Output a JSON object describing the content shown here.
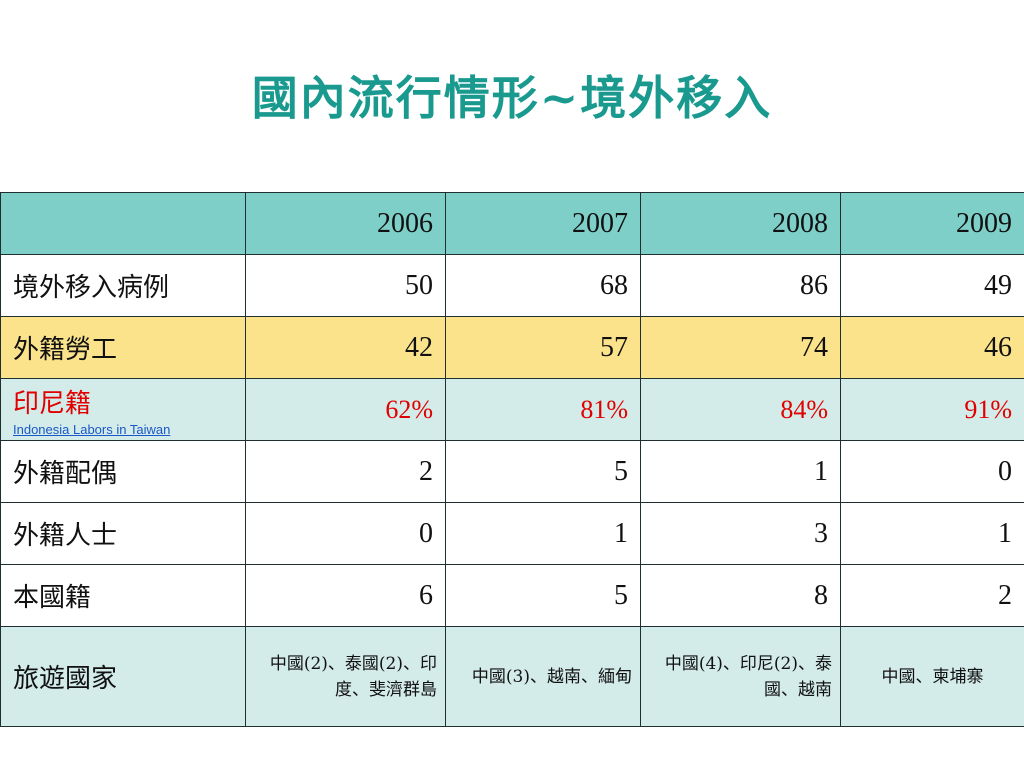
{
  "title": "國內流行情形~境外移入",
  "years": [
    "2006",
    "2007",
    "2008",
    "2009"
  ],
  "rows": [
    {
      "label": "境外移入病例",
      "values": [
        "50",
        "68",
        "86",
        "49"
      ]
    },
    {
      "label": "外籍勞工",
      "values": [
        "42",
        "57",
        "74",
        "46"
      ]
    },
    {
      "label": "印尼籍",
      "sublabel": "Indonesia Labors in Taiwan",
      "values": [
        "62%",
        "81%",
        "84%",
        "91%"
      ]
    },
    {
      "label": "外籍配偶",
      "values": [
        "2",
        "5",
        "1",
        "0"
      ]
    },
    {
      "label": "外籍人士",
      "values": [
        "0",
        "1",
        "3",
        "1"
      ]
    },
    {
      "label": "本國籍",
      "values": [
        "6",
        "5",
        "8",
        "2"
      ]
    },
    {
      "label": "旅遊國家",
      "values": [
        "中國(2)、泰國(2)、印度、斐濟群島",
        "中國(3)、越南、緬甸",
        "中國(4)、印尼(2)、泰國、越南",
        "中國、柬埔寨"
      ]
    }
  ],
  "colors": {
    "title": "#1a9a8f",
    "header": "#7ecfc8",
    "highlight": "#fae38a",
    "teal_row": "#d3ebe9",
    "percent": "#e00000"
  }
}
